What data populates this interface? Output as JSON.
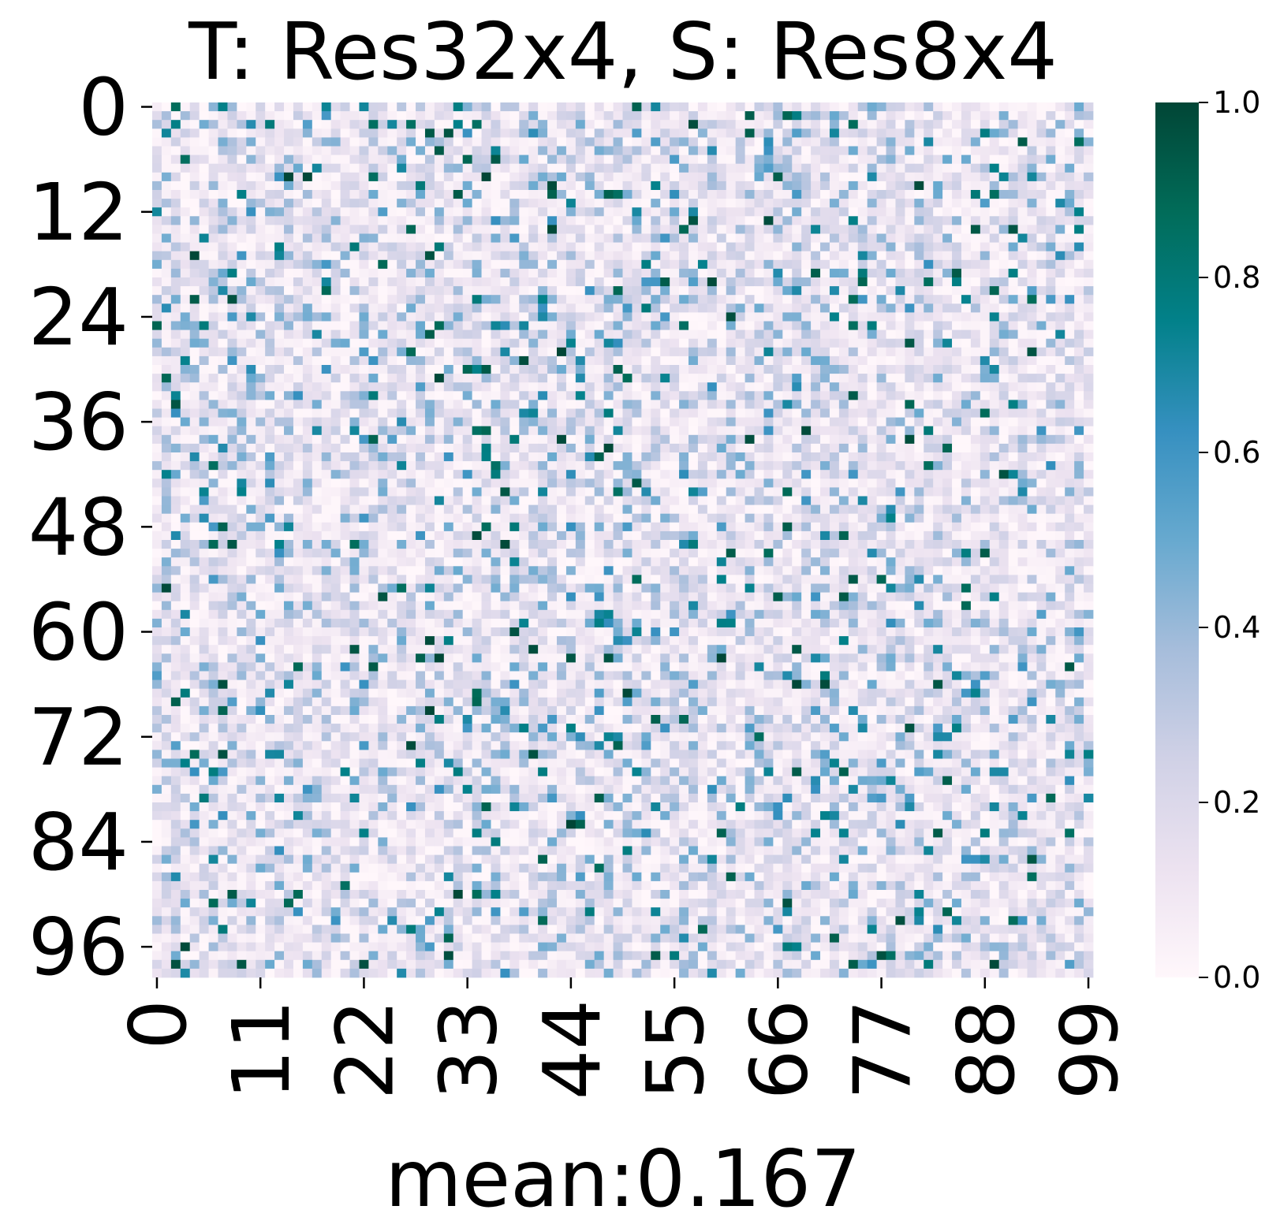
{
  "chart_data": {
    "type": "heatmap",
    "title": "T: Res32x4, S: Res8x4",
    "xlabel": "mean:0.167",
    "ylabel": "",
    "rows": 100,
    "cols": 100,
    "x_ticks": [
      "0",
      "11",
      "22",
      "33",
      "44",
      "55",
      "66",
      "77",
      "88",
      "99"
    ],
    "y_ticks": [
      "0",
      "12",
      "24",
      "36",
      "48",
      "60",
      "72",
      "84",
      "96"
    ],
    "colorbar": {
      "range": [
        0.0,
        1.0
      ],
      "ticks": [
        "0.0",
        "0.2",
        "0.4",
        "0.6",
        "0.8",
        "1.0"
      ],
      "colormap": [
        "#fff7fb",
        "#ece2f0",
        "#d0d1e6",
        "#a6bddb",
        "#67a9cf",
        "#3690c0",
        "#02818a",
        "#016c59",
        "#014636"
      ]
    },
    "mean": 0.167,
    "value_summary": "100x100 matrix of values in [0,1] with mean 0.167; mostly light (0.0-0.3) with sparse bright cells near 0.6-1.0 scattered throughout"
  }
}
